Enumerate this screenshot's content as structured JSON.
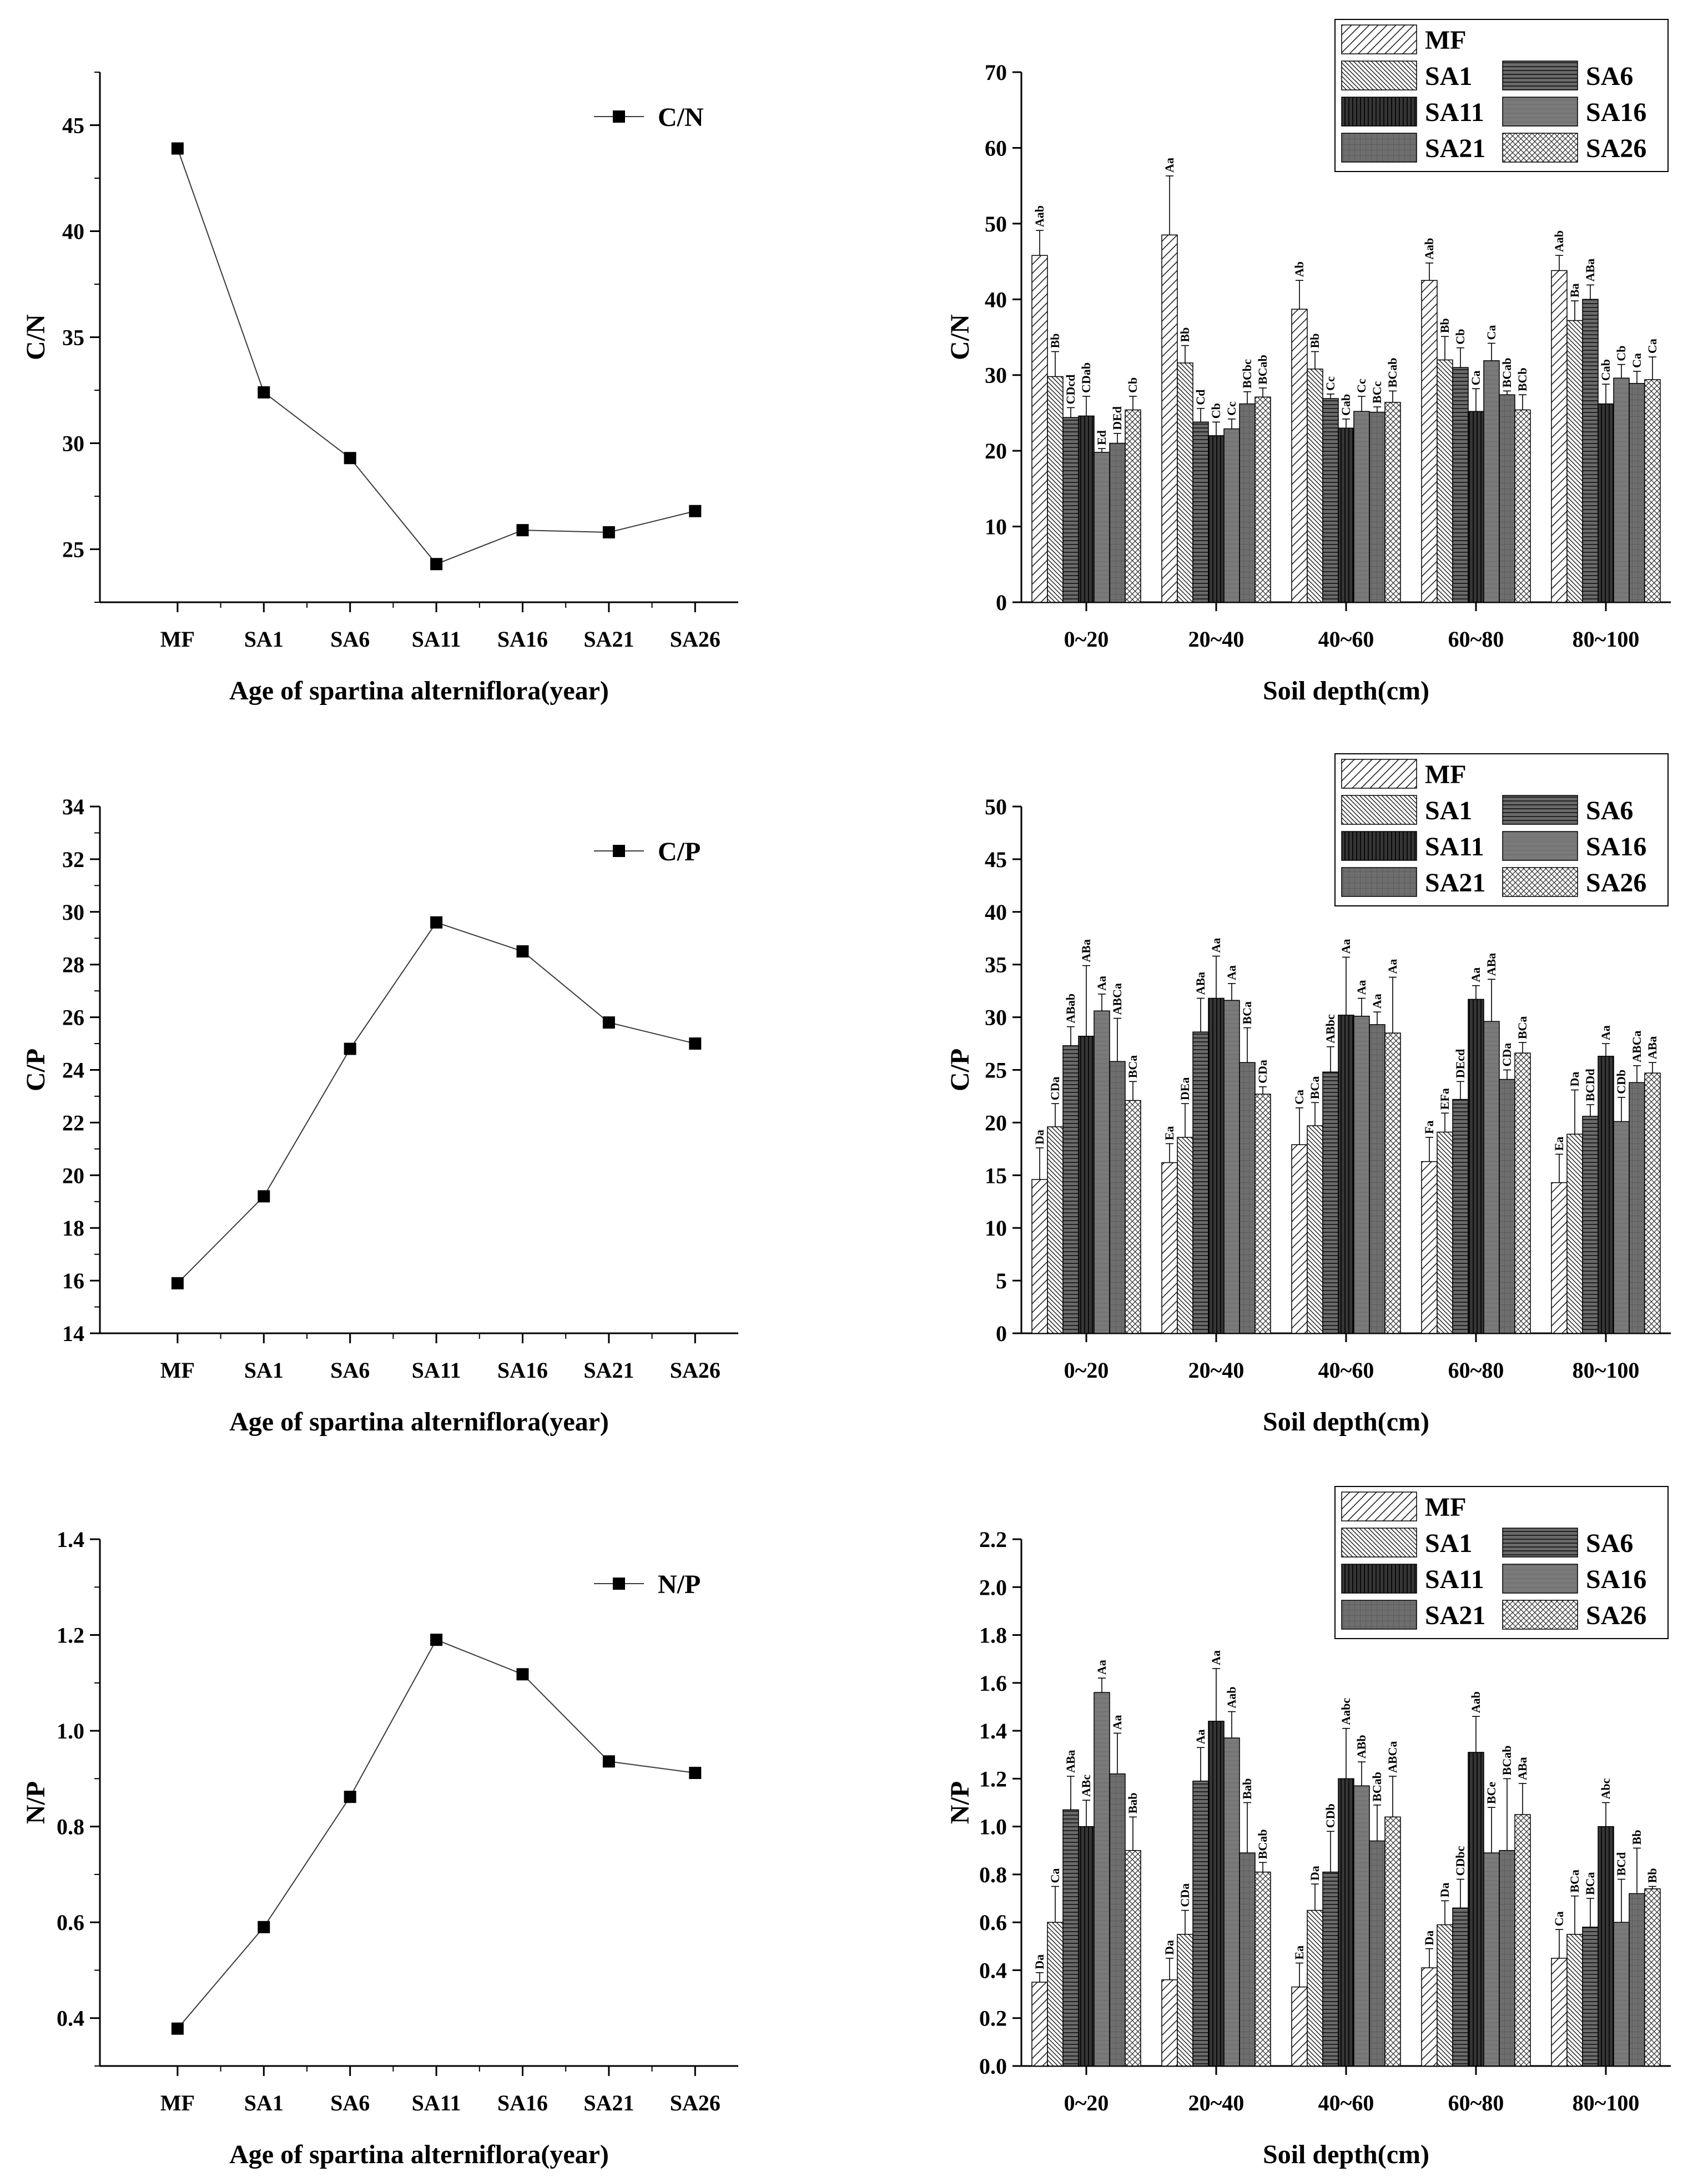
{
  "chart_data": [
    {
      "id": "cn-line",
      "type": "line",
      "categories": [
        "MF",
        "SA1",
        "SA6",
        "SA11",
        "SA16",
        "SA21",
        "SA26"
      ],
      "series": [
        {
          "name": "C/N",
          "values": [
            43.9,
            32.4,
            29.3,
            24.3,
            25.9,
            25.8,
            26.8
          ]
        }
      ],
      "xlabel": "Age of spartina alterniflora(year)",
      "ylabel": "C/N",
      "ylim": [
        22.5,
        47.5
      ],
      "yticks": [
        "25",
        "30",
        "35",
        "40",
        "45"
      ],
      "legend": "top-right"
    },
    {
      "id": "cn-bar",
      "type": "bar",
      "categories": [
        "0~20",
        "20~40",
        "40~60",
        "60~80",
        "80~100"
      ],
      "series": [
        {
          "name": "MF",
          "values": [
            45.8,
            48.5,
            38.7,
            42.5,
            43.8
          ],
          "errors": [
            3.3,
            7.8,
            3.8,
            2.3,
            2.0
          ],
          "labels": [
            "Aab",
            "Aa",
            "Ab",
            "Aab",
            "Aab"
          ]
        },
        {
          "name": "SA1",
          "values": [
            29.8,
            31.6,
            30.8,
            32.0,
            37.2
          ],
          "errors": [
            3.3,
            2.3,
            2.3,
            3.1,
            2.6
          ],
          "labels": [
            "Bb",
            "Bb",
            "Bb",
            "Bb",
            "Ba"
          ]
        },
        {
          "name": "SA6",
          "values": [
            24.4,
            23.8,
            26.9,
            31.0,
            40.0
          ],
          "errors": [
            1.3,
            1.8,
            0.6,
            2.6,
            1.9
          ],
          "labels": [
            "CDcd",
            "Cd",
            "Cc",
            "Cb",
            "ABa"
          ]
        },
        {
          "name": "SA11",
          "values": [
            24.6,
            22.0,
            23.0,
            25.2,
            26.2
          ],
          "errors": [
            2.6,
            1.8,
            1.2,
            3.0,
            2.6
          ],
          "labels": [
            "CDab",
            "Cb",
            "Cab",
            "Ca",
            "Cab"
          ]
        },
        {
          "name": "SA16",
          "values": [
            19.8,
            22.9,
            25.2,
            31.9,
            29.6
          ],
          "errors": [
            0.5,
            1.3,
            2.0,
            2.3,
            1.8
          ],
          "labels": [
            "Ed",
            "Cc",
            "Cc",
            "Ca",
            "Cb"
          ]
        },
        {
          "name": "SA21",
          "values": [
            21.0,
            26.2,
            25.1,
            27.4,
            28.9
          ],
          "errors": [
            1.3,
            1.6,
            0.7,
            0.5,
            1.6
          ],
          "labels": [
            "DEd",
            "BCbc",
            "BCc",
            "BCab",
            "Ca"
          ]
        },
        {
          "name": "SA26",
          "values": [
            25.4,
            27.1,
            26.4,
            25.4,
            29.4
          ],
          "errors": [
            1.8,
            1.2,
            1.5,
            2.0,
            3.0
          ],
          "labels": [
            "Cb",
            "BCab",
            "BCab",
            "BCb",
            "Ca"
          ]
        }
      ],
      "xlabel": "Soil depth(cm)",
      "ylabel": "C/N",
      "ylim": [
        0,
        70
      ],
      "yticks": [
        "0",
        "10",
        "20",
        "30",
        "40",
        "50",
        "60",
        "70"
      ],
      "legend": "top-right"
    },
    {
      "id": "cp-line",
      "type": "line",
      "categories": [
        "MF",
        "SA1",
        "SA6",
        "SA11",
        "SA16",
        "SA21",
        "SA26"
      ],
      "series": [
        {
          "name": "C/P",
          "values": [
            15.9,
            19.2,
            24.8,
            29.6,
            28.5,
            25.8,
            25.0
          ]
        }
      ],
      "xlabel": "Age of spartina alterniflora(year)",
      "ylabel": "C/P",
      "ylim": [
        14,
        34
      ],
      "yticks": [
        "14",
        "16",
        "18",
        "20",
        "22",
        "24",
        "26",
        "28",
        "30",
        "32",
        "34"
      ],
      "legend": "top-right"
    },
    {
      "id": "cp-bar",
      "type": "bar",
      "categories": [
        "0~20",
        "20~40",
        "40~60",
        "60~80",
        "80~100"
      ],
      "series": [
        {
          "name": "MF",
          "values": [
            14.6,
            16.2,
            17.9,
            16.3,
            14.3
          ],
          "errors": [
            3.0,
            1.8,
            3.5,
            2.3,
            2.7
          ],
          "labels": [
            "Da",
            "Ea",
            "Ca",
            "Fa",
            "Ea"
          ]
        },
        {
          "name": "SA1",
          "values": [
            19.6,
            18.6,
            19.7,
            19.1,
            18.9
          ],
          "errors": [
            2.2,
            3.2,
            2.2,
            1.8,
            4.2
          ],
          "labels": [
            "CDa",
            "DEa",
            "BCa",
            "EFa",
            "Da"
          ]
        },
        {
          "name": "SA6",
          "values": [
            27.3,
            28.6,
            24.8,
            22.2,
            20.6
          ],
          "errors": [
            1.8,
            3.2,
            2.4,
            1.7,
            1.1
          ],
          "labels": [
            "ABab",
            "ABa",
            "ABbc",
            "DEcd",
            "BCDd"
          ]
        },
        {
          "name": "SA11",
          "values": [
            28.2,
            31.8,
            30.2,
            31.7,
            26.3
          ],
          "errors": [
            6.7,
            4.0,
            5.5,
            1.3,
            1.2
          ],
          "labels": [
            "ABa",
            "Aa",
            "Aa",
            "Aa",
            "Aa"
          ]
        },
        {
          "name": "SA16",
          "values": [
            30.6,
            31.6,
            30.1,
            29.6,
            20.1
          ],
          "errors": [
            1.6,
            1.6,
            1.7,
            4.0,
            2.3
          ],
          "labels": [
            "Aa",
            "Aa",
            "Aa",
            "ABa",
            "CDb"
          ]
        },
        {
          "name": "SA21",
          "values": [
            25.8,
            25.7,
            29.3,
            24.1,
            23.8
          ],
          "errors": [
            4.1,
            3.3,
            1.2,
            0.9,
            1.6
          ],
          "labels": [
            "ABCa",
            "BCa",
            "Aa",
            "CDa",
            "ABCa"
          ]
        },
        {
          "name": "SA26",
          "values": [
            22.1,
            22.7,
            28.5,
            26.6,
            24.7
          ],
          "errors": [
            1.8,
            0.7,
            5.3,
            1.0,
            1.0
          ],
          "labels": [
            "BCa",
            "CDa",
            "Aa",
            "BCa",
            "ABa"
          ]
        }
      ],
      "xlabel": "Soil depth(cm)",
      "ylabel": "C/P",
      "ylim": [
        0,
        50
      ],
      "yticks": [
        "0",
        "5",
        "10",
        "15",
        "20",
        "25",
        "30",
        "35",
        "40",
        "45",
        "50"
      ],
      "legend": "top-right"
    },
    {
      "id": "np-line",
      "type": "line",
      "categories": [
        "MF",
        "SA1",
        "SA6",
        "SA11",
        "SA16",
        "SA21",
        "SA26"
      ],
      "series": [
        {
          "name": "N/P",
          "values": [
            0.378,
            0.59,
            0.862,
            1.19,
            1.118,
            0.936,
            0.912
          ]
        }
      ],
      "xlabel": "Age of spartina alterniflora(year)",
      "ylabel": "N/P",
      "ylim": [
        0.3,
        1.4
      ],
      "yticks": [
        "0.4",
        "0.6",
        "0.8",
        "1.0",
        "1.2",
        "1.4"
      ],
      "legend": "top-right"
    },
    {
      "id": "np-bar",
      "type": "bar",
      "categories": [
        "0~20",
        "20~40",
        "40~60",
        "60~80",
        "80~100"
      ],
      "series": [
        {
          "name": "MF",
          "values": [
            0.35,
            0.36,
            0.33,
            0.41,
            0.45
          ],
          "errors": [
            0.04,
            0.09,
            0.1,
            0.08,
            0.12
          ],
          "labels": [
            "Da",
            "Da",
            "Ea",
            "Da",
            "Ca"
          ]
        },
        {
          "name": "SA1",
          "values": [
            0.6,
            0.55,
            0.65,
            0.59,
            0.55
          ],
          "errors": [
            0.15,
            0.1,
            0.11,
            0.1,
            0.16
          ],
          "labels": [
            "Ca",
            "CDa",
            "Da",
            "Da",
            "BCa"
          ]
        },
        {
          "name": "SA6",
          "values": [
            1.07,
            1.19,
            0.81,
            0.66,
            0.58
          ],
          "errors": [
            0.14,
            0.14,
            0.17,
            0.12,
            0.12
          ],
          "labels": [
            "ABa",
            "Aa",
            "CDb",
            "CDbc",
            "BCa"
          ]
        },
        {
          "name": "SA11",
          "values": [
            1.0,
            1.44,
            1.2,
            1.31,
            1.0
          ],
          "errors": [
            0.11,
            0.22,
            0.21,
            0.15,
            0.1
          ],
          "labels": [
            "ABc",
            "Aa",
            "Aabc",
            "Aab",
            "Abc"
          ]
        },
        {
          "name": "SA16",
          "values": [
            1.56,
            1.37,
            1.17,
            0.89,
            0.6
          ],
          "errors": [
            0.06,
            0.11,
            0.1,
            0.19,
            0.18
          ],
          "labels": [
            "Aa",
            "Aab",
            "ABb",
            "BCe",
            "BCd"
          ]
        },
        {
          "name": "SA21",
          "values": [
            1.22,
            0.89,
            0.94,
            0.9,
            0.72
          ],
          "errors": [
            0.17,
            0.21,
            0.15,
            0.3,
            0.19
          ],
          "labels": [
            "Aa",
            "Bab",
            "BCab",
            "BCab",
            "Bb"
          ]
        },
        {
          "name": "SA26",
          "values": [
            0.9,
            0.81,
            1.04,
            1.05,
            0.74
          ],
          "errors": [
            0.14,
            0.04,
            0.17,
            0.13,
            0.01
          ],
          "labels": [
            "Bab",
            "BCab",
            "ABCa",
            "ABa",
            "Bb"
          ]
        }
      ],
      "xlabel": "Soil depth(cm)",
      "ylabel": "N/P",
      "ylim": [
        0,
        2.2
      ],
      "yticks": [
        "0.0",
        "0.2",
        "0.4",
        "0.6",
        "0.8",
        "1.0",
        "1.2",
        "1.4",
        "1.6",
        "1.8",
        "2.0",
        "2.2"
      ],
      "legend": "top-right"
    }
  ]
}
